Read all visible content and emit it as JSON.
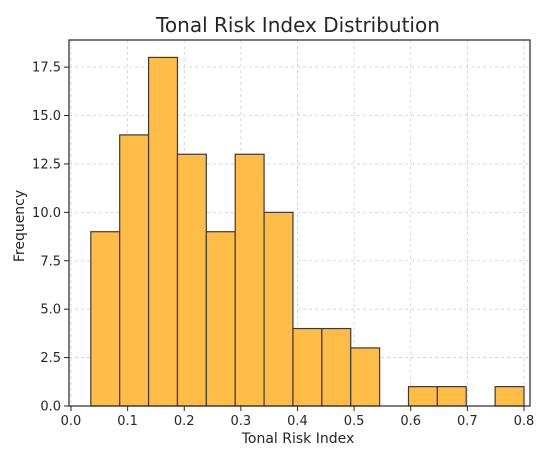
{
  "chart_data": {
    "type": "bar",
    "title": "Tonal Risk Index Distribution",
    "xlabel": "Tonal Risk Index",
    "ylabel": "Frequency",
    "xlim": [
      0.0,
      0.8
    ],
    "ylim": [
      0,
      18.9
    ],
    "bin_edges": [
      0.035,
      0.086,
      0.137,
      0.188,
      0.239,
      0.29,
      0.341,
      0.392,
      0.443,
      0.494,
      0.545,
      0.596,
      0.647,
      0.698,
      0.749,
      0.8
    ],
    "values": [
      9,
      14,
      18,
      13,
      9,
      13,
      10,
      4,
      4,
      3,
      0,
      1,
      1,
      0,
      1
    ],
    "xticks": [
      "0.0",
      "0.1",
      "0.2",
      "0.3",
      "0.4",
      "0.5",
      "0.6",
      "0.7",
      "0.8"
    ],
    "xtick_values": [
      0.0,
      0.1,
      0.2,
      0.3,
      0.4,
      0.5,
      0.6,
      0.7,
      0.8
    ],
    "yticks": [
      "0.0",
      "2.5",
      "5.0",
      "7.5",
      "10.0",
      "12.5",
      "15.0",
      "17.5"
    ],
    "ytick_values": [
      0,
      2.5,
      5,
      7.5,
      10,
      12.5,
      15,
      17.5
    ],
    "grid": true,
    "bar_color": "#FFBC47",
    "edge_color": "#3a3a3a"
  }
}
